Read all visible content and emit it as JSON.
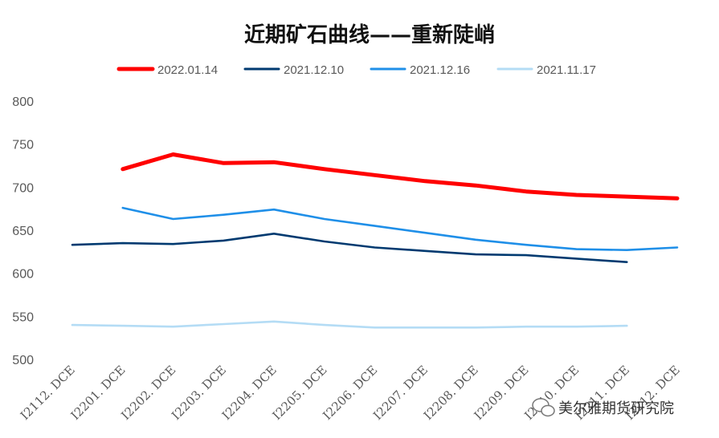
{
  "chart_data": {
    "type": "line",
    "title": "近期矿石曲线——重新陡峭",
    "xlabel": "",
    "ylabel": "",
    "ylim": [
      500,
      800
    ],
    "yticks": [
      500,
      550,
      600,
      650,
      700,
      750,
      800
    ],
    "grid": false,
    "legend_position": "top",
    "categories": [
      "I2112. DCE",
      "I2201. DCE",
      "I2202. DCE",
      "I2203. DCE",
      "I2204. DCE",
      "I2205. DCE",
      "I2206. DCE",
      "I2207. DCE",
      "I2208. DCE",
      "I2209. DCE",
      "I2210. DCE",
      "I2211. DCE",
      "I2212. DCE"
    ],
    "series": [
      {
        "name": "2022.01.14",
        "color": "#ff0000",
        "values": [
          null,
          721,
          738,
          728,
          729,
          721,
          714,
          707,
          702,
          695,
          691,
          689,
          687
        ]
      },
      {
        "name": "2021.12.10",
        "color": "#003a70",
        "values": [
          633,
          635,
          634,
          638,
          646,
          637,
          630,
          626,
          622,
          621,
          617,
          613,
          null
        ]
      },
      {
        "name": "2021.12.16",
        "color": "#1f8fe8",
        "values": [
          null,
          676,
          663,
          668,
          674,
          663,
          655,
          647,
          639,
          633,
          628,
          627,
          630
        ]
      },
      {
        "name": "2021.11.17",
        "color": "#b4dcf5",
        "values": [
          540,
          539,
          538,
          541,
          544,
          540,
          537,
          537,
          537,
          538,
          538,
          539,
          null
        ]
      }
    ]
  },
  "watermark": {
    "text": "美尔雅期货研究院",
    "icon": "wechat-icon"
  }
}
